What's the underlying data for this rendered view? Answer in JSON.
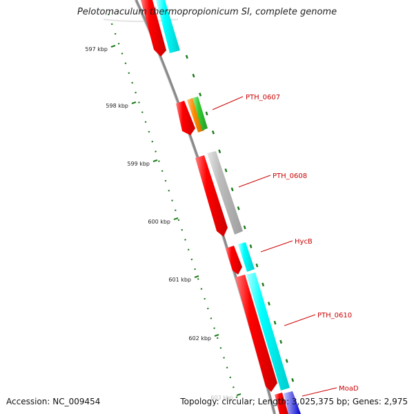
{
  "title": "Pelotomaculum thermopropionicum SI, complete genome",
  "footer": {
    "accession": "Accession: NC_009454",
    "summary": "Topology: circular; Length: 3,025,375 bp; Genes: 2,975"
  },
  "scale": {
    "ticks": [
      {
        "kbp": 597,
        "label": "597 kbp"
      },
      {
        "kbp": 598,
        "label": "598 kbp"
      },
      {
        "kbp": 599,
        "label": "599 kbp"
      },
      {
        "kbp": 600,
        "label": "600 kbp"
      },
      {
        "kbp": 601,
        "label": "601 kbp"
      },
      {
        "kbp": 602,
        "label": "602 kbp"
      },
      {
        "kbp": 603,
        "label": "603 kbp"
      }
    ],
    "tick_color": "#1a7a1a"
  },
  "gene_labels": [
    {
      "name": "PTH_0607",
      "color": "#cc0000"
    },
    {
      "name": "PTH_0608",
      "color": "#cc0000"
    },
    {
      "name": "HycB",
      "color": "#cc0000"
    },
    {
      "name": "PTH_0610",
      "color": "#cc0000"
    },
    {
      "name": "MoaD",
      "color": "#cc0000"
    }
  ],
  "colors": {
    "backbone": "#8a8a8a",
    "red_feature": "#ff0000",
    "cyan_feature": "#00ffff",
    "orange_feature": "#ff8c00",
    "green_feature": "#33cc33",
    "gray_feature": "#bdbdbd",
    "blue_feature": "#0000cc"
  }
}
